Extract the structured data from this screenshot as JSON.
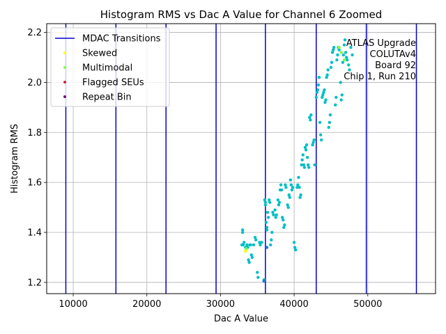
{
  "chart_data": {
    "type": "scatter",
    "title": "Histogram RMS vs Dac A Value for Channel 6 Zoomed",
    "xlabel": "Dac A Value",
    "ylabel": "Histogram RMS",
    "xlim": [
      6400,
      59200
    ],
    "ylim": [
      1.155,
      2.235
    ],
    "xticks": [
      10000,
      20000,
      30000,
      40000,
      50000
    ],
    "xtick_labels": [
      "10000",
      "20000",
      "30000",
      "40000",
      "50000"
    ],
    "yticks": [
      1.2,
      1.4,
      1.6,
      1.8,
      2.0,
      2.2
    ],
    "ytick_labels": [
      "1.2",
      "1.4",
      "1.6",
      "1.8",
      "2.0",
      "2.2"
    ],
    "grid": true,
    "legend_position": "upper-left",
    "annotation": [
      "ATLAS Upgrade",
      "COLUTAv4",
      "Board 92",
      "Chip 1, Run 210"
    ],
    "vlines": {
      "name": "MDAC Transitions",
      "color": "#0000cc",
      "x": [
        9000,
        15800,
        22600,
        29400,
        36100,
        43000,
        49800,
        56600
      ]
    },
    "legend_entries": [
      {
        "label": "MDAC Transitions",
        "kind": "line",
        "color": "#0000cc"
      },
      {
        "label": "Skewed",
        "kind": "point",
        "color": "#ffff00"
      },
      {
        "label": "Multimodal",
        "kind": "point",
        "color": "#7fff3f"
      },
      {
        "label": "Flagged SEUs",
        "kind": "point",
        "color": "#c8283c"
      },
      {
        "label": "Repeat Bin",
        "kind": "point",
        "color": "#6e0f78"
      }
    ],
    "series": [
      {
        "color": "#00bfc4",
        "points": [
          [
            32900,
            1.35
          ],
          [
            33000,
            1.41
          ],
          [
            33000,
            1.4
          ],
          [
            33100,
            1.35
          ],
          [
            33200,
            1.36
          ],
          [
            33400,
            1.34
          ],
          [
            33600,
            1.35
          ],
          [
            33700,
            1.34
          ],
          [
            33800,
            1.29
          ],
          [
            33900,
            1.28
          ],
          [
            34000,
            1.35
          ],
          [
            34100,
            1.35
          ],
          [
            34200,
            1.31
          ],
          [
            34300,
            1.3
          ],
          [
            34500,
            1.35
          ],
          [
            34700,
            1.38
          ],
          [
            34800,
            1.37
          ],
          [
            35000,
            1.24
          ],
          [
            35100,
            1.22
          ],
          [
            35300,
            1.36
          ],
          [
            35400,
            1.35
          ],
          [
            35600,
            1.36
          ],
          [
            35900,
            1.21
          ],
          [
            36000,
            1.53
          ],
          [
            36100,
            1.52
          ],
          [
            36100,
            1.51
          ],
          [
            36200,
            1.44
          ],
          [
            36300,
            1.42
          ],
          [
            36300,
            1.41
          ],
          [
            36400,
            1.48
          ],
          [
            36500,
            1.46
          ],
          [
            36600,
            1.53
          ],
          [
            36700,
            1.52
          ],
          [
            36800,
            1.35
          ],
          [
            36900,
            1.37
          ],
          [
            37000,
            1.4
          ],
          [
            37100,
            1.48
          ],
          [
            37200,
            1.47
          ],
          [
            37400,
            1.49
          ],
          [
            37500,
            1.46
          ],
          [
            37600,
            1.47
          ],
          [
            37800,
            1.53
          ],
          [
            37900,
            1.51
          ],
          [
            38000,
            1.52
          ],
          [
            38100,
            1.57
          ],
          [
            38200,
            1.59
          ],
          [
            38300,
            1.57
          ],
          [
            38400,
            1.46
          ],
          [
            38500,
            1.45
          ],
          [
            38600,
            1.42
          ],
          [
            38700,
            1.43
          ],
          [
            38800,
            1.59
          ],
          [
            38900,
            1.58
          ],
          [
            39100,
            1.51
          ],
          [
            39200,
            1.5
          ],
          [
            39300,
            1.55
          ],
          [
            39400,
            1.54
          ],
          [
            39500,
            1.61
          ],
          [
            39600,
            1.59
          ],
          [
            39700,
            1.57
          ],
          [
            39800,
            1.58
          ],
          [
            40000,
            1.36
          ],
          [
            40100,
            1.34
          ],
          [
            40200,
            1.33
          ],
          [
            40400,
            1.58
          ],
          [
            40500,
            1.59
          ],
          [
            40600,
            1.62
          ],
          [
            40700,
            1.58
          ],
          [
            40800,
            1.54
          ],
          [
            40900,
            1.55
          ],
          [
            41000,
            1.67
          ],
          [
            41100,
            1.69
          ],
          [
            41200,
            1.71
          ],
          [
            41300,
            1.67
          ],
          [
            41400,
            1.66
          ],
          [
            41500,
            1.74
          ],
          [
            41600,
            1.73
          ],
          [
            41700,
            1.75
          ],
          [
            41800,
            1.7
          ],
          [
            41900,
            1.67
          ],
          [
            42000,
            1.66
          ],
          [
            42100,
            1.86
          ],
          [
            42200,
            1.85
          ],
          [
            42300,
            1.87
          ],
          [
            42500,
            1.75
          ],
          [
            42600,
            1.76
          ],
          [
            42700,
            1.77
          ],
          [
            42800,
            1.67
          ],
          [
            43000,
            1.94
          ],
          [
            43100,
            1.96
          ],
          [
            43200,
            1.97
          ],
          [
            43300,
            1.99
          ],
          [
            43400,
            2.02
          ],
          [
            43500,
            1.84
          ],
          [
            43600,
            1.79
          ],
          [
            43700,
            1.77
          ],
          [
            43800,
            1.94
          ],
          [
            43900,
            1.95
          ],
          [
            44000,
            1.96
          ],
          [
            44100,
            1.97
          ],
          [
            44200,
            1.92
          ],
          [
            44300,
            1.93
          ],
          [
            44400,
            2.02
          ],
          [
            44500,
            2.03
          ],
          [
            44600,
            2.05
          ],
          [
            44700,
            1.82
          ],
          [
            44800,
            1.84
          ],
          [
            44900,
            1.87
          ],
          [
            45000,
            2.06
          ],
          [
            45100,
            2.08
          ],
          [
            45200,
            2.12
          ],
          [
            45300,
            2.13
          ],
          [
            45400,
            2.14
          ],
          [
            45600,
            1.91
          ],
          [
            45700,
            1.94
          ],
          [
            45800,
            2.09
          ],
          [
            45900,
            2.11
          ],
          [
            46000,
            2.14
          ],
          [
            46100,
            2.13
          ],
          [
            46300,
            2.0
          ],
          [
            46400,
            1.93
          ],
          [
            46500,
            1.95
          ],
          [
            46600,
            2.08
          ],
          [
            46700,
            2.11
          ],
          [
            46800,
            2.15
          ],
          [
            46900,
            2.17
          ],
          [
            47000,
            2.12
          ],
          [
            47100,
            2.1
          ],
          [
            47200,
            2.09
          ],
          [
            47400,
            2.07
          ],
          [
            47500,
            2.05
          ],
          [
            47700,
            2.14
          ],
          [
            47900,
            2.11
          ]
        ]
      },
      {
        "color": "#1f77dd",
        "points": [
          [
            35900,
            1.205
          ],
          [
            36300,
            1.34
          ]
        ]
      },
      {
        "color": "#ffff00",
        "points": [
          [
            33400,
            1.325
          ]
        ]
      },
      {
        "color": "#7fff3f",
        "points": [
          [
            33500,
            1.335
          ],
          [
            46100,
            2.14
          ],
          [
            46400,
            2.12
          ],
          [
            46800,
            2.09
          ]
        ]
      }
    ]
  }
}
